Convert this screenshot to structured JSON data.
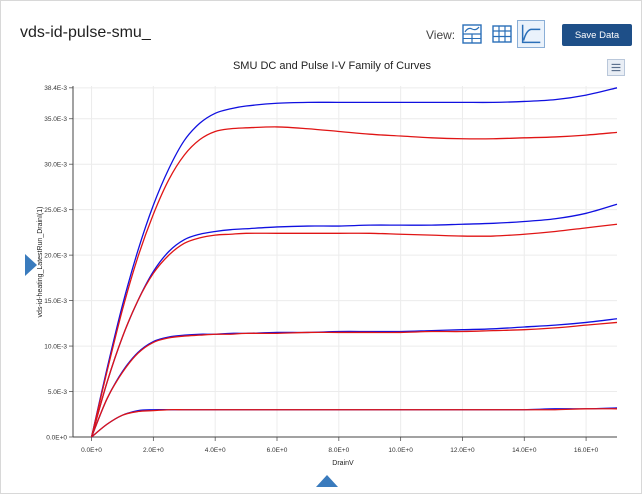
{
  "header": {
    "title": "vds-id-pulse-smu_",
    "view_label": "View:",
    "save_label": "Save Data",
    "view_buttons": [
      {
        "icon": "chart-table-icon"
      },
      {
        "icon": "table-icon"
      },
      {
        "icon": "chart-icon",
        "selected": true
      }
    ]
  },
  "colors": {
    "accent": "#1e4f88",
    "dc_series": "#1010e0",
    "pulse_series": "#e01515"
  },
  "chart_data": {
    "type": "line",
    "title": "SMU DC and Pulse I-V Family of Curves",
    "xlabel": "DrainV",
    "ylabel": "vds-id-heating_LatestRun_DrainI(1)",
    "xlim": [
      -0.6,
      17.0
    ],
    "ylim": [
      0,
      0.0386
    ],
    "x_ticks": [
      "0.0E+0",
      "2.0E+0",
      "4.0E+0",
      "6.0E+0",
      "8.0E+0",
      "10.0E+0",
      "12.0E+0",
      "14.0E+0",
      "16.0E+0"
    ],
    "x_tick_values": [
      0,
      2,
      4,
      6,
      8,
      10,
      12,
      14,
      16
    ],
    "y_ticks": [
      "0.0E+0",
      "5.0E-3",
      "10.0E-3",
      "15.0E-3",
      "20.0E-3",
      "25.0E-3",
      "30.0E-3",
      "35.0E-3",
      "38.4E-3"
    ],
    "y_tick_values": [
      0,
      0.005,
      0.01,
      0.015,
      0.02,
      0.025,
      0.03,
      0.035,
      0.0384
    ],
    "grid": true,
    "legend": "none",
    "series": [
      {
        "group": "dc",
        "x": [
          0,
          0.5,
          1,
          1.5,
          2,
          2.5,
          3,
          3.5,
          4,
          4.5,
          5,
          6,
          7,
          8,
          9,
          10,
          11,
          12,
          13,
          14,
          15,
          16,
          17
        ],
        "y": [
          0.0,
          0.0014,
          0.0024,
          0.0029,
          0.003,
          0.003,
          0.003,
          0.003,
          0.003,
          0.003,
          0.003,
          0.003,
          0.003,
          0.003,
          0.003,
          0.003,
          0.003,
          0.003,
          0.003,
          0.003,
          0.0031,
          0.0031,
          0.0032
        ]
      },
      {
        "group": "pulse",
        "x": [
          0,
          0.5,
          1,
          1.5,
          2,
          2.5,
          3,
          3.5,
          4,
          4.5,
          5,
          6,
          7,
          8,
          9,
          10,
          11,
          12,
          13,
          14,
          15,
          16,
          17
        ],
        "y": [
          0.0,
          0.0014,
          0.0024,
          0.0028,
          0.0029,
          0.003,
          0.003,
          0.003,
          0.003,
          0.003,
          0.003,
          0.003,
          0.003,
          0.003,
          0.003,
          0.003,
          0.003,
          0.003,
          0.003,
          0.003,
          0.003,
          0.0031,
          0.0031
        ]
      },
      {
        "group": "dc",
        "x": [
          0,
          0.5,
          1,
          1.5,
          2,
          2.5,
          3,
          3.5,
          4,
          4.5,
          5,
          6,
          7,
          8,
          9,
          10,
          11,
          12,
          13,
          14,
          15,
          16,
          17
        ],
        "y": [
          0.0,
          0.0042,
          0.0072,
          0.0093,
          0.0105,
          0.011,
          0.0112,
          0.0113,
          0.0113,
          0.0114,
          0.0114,
          0.0115,
          0.0115,
          0.0116,
          0.0116,
          0.0116,
          0.0117,
          0.0118,
          0.0119,
          0.0121,
          0.0123,
          0.0126,
          0.013
        ]
      },
      {
        "group": "pulse",
        "x": [
          0,
          0.5,
          1,
          1.5,
          2,
          2.5,
          3,
          3.5,
          4,
          4.5,
          5,
          6,
          7,
          8,
          9,
          10,
          11,
          12,
          13,
          14,
          15,
          16,
          17
        ],
        "y": [
          0.0,
          0.0042,
          0.0071,
          0.0092,
          0.0104,
          0.0109,
          0.0111,
          0.0112,
          0.0113,
          0.0113,
          0.0114,
          0.0114,
          0.0115,
          0.0115,
          0.0115,
          0.0115,
          0.0116,
          0.0116,
          0.0117,
          0.0118,
          0.012,
          0.0123,
          0.0126
        ]
      },
      {
        "group": "dc",
        "x": [
          0,
          0.5,
          1,
          1.5,
          2,
          2.5,
          3,
          3.5,
          4,
          4.5,
          5,
          6,
          7,
          8,
          9,
          10,
          11,
          12,
          13,
          14,
          15,
          16,
          17
        ],
        "y": [
          0.0,
          0.006,
          0.011,
          0.015,
          0.0182,
          0.0204,
          0.0217,
          0.0223,
          0.0226,
          0.0228,
          0.0229,
          0.0231,
          0.0232,
          0.0232,
          0.0233,
          0.0233,
          0.0233,
          0.0234,
          0.0235,
          0.0237,
          0.024,
          0.0246,
          0.0256
        ]
      },
      {
        "group": "pulse",
        "x": [
          0,
          0.5,
          1,
          1.5,
          2,
          2.5,
          3,
          3.5,
          4,
          4.5,
          5,
          6,
          7,
          8,
          9,
          10,
          11,
          12,
          13,
          14,
          15,
          16,
          17
        ],
        "y": [
          0.0,
          0.006,
          0.011,
          0.015,
          0.018,
          0.02,
          0.0213,
          0.0219,
          0.0222,
          0.0223,
          0.0224,
          0.0224,
          0.0224,
          0.0224,
          0.0224,
          0.0223,
          0.0222,
          0.0221,
          0.0221,
          0.0223,
          0.0226,
          0.023,
          0.0234
        ]
      },
      {
        "group": "dc",
        "x": [
          0,
          0.5,
          1,
          1.5,
          2,
          2.5,
          3,
          3.5,
          4,
          4.5,
          5,
          6,
          7,
          8,
          9,
          10,
          11,
          12,
          13,
          14,
          15,
          16,
          17
        ],
        "y": [
          0.0,
          0.0075,
          0.0145,
          0.0205,
          0.0255,
          0.0295,
          0.0326,
          0.0345,
          0.0356,
          0.0361,
          0.0364,
          0.0367,
          0.0368,
          0.0368,
          0.0368,
          0.0368,
          0.0368,
          0.0368,
          0.0368,
          0.0369,
          0.0371,
          0.0376,
          0.0384
        ]
      },
      {
        "group": "pulse",
        "x": [
          0,
          0.5,
          1,
          1.5,
          2,
          2.5,
          3,
          3.5,
          4,
          4.5,
          5,
          6,
          7,
          8,
          9,
          10,
          11,
          12,
          13,
          14,
          15,
          16,
          17
        ],
        "y": [
          0.0,
          0.0072,
          0.014,
          0.0198,
          0.0245,
          0.0283,
          0.031,
          0.0327,
          0.0336,
          0.0339,
          0.034,
          0.0341,
          0.0339,
          0.0336,
          0.0333,
          0.0331,
          0.0329,
          0.0328,
          0.0328,
          0.0329,
          0.033,
          0.0332,
          0.0335
        ]
      }
    ]
  }
}
